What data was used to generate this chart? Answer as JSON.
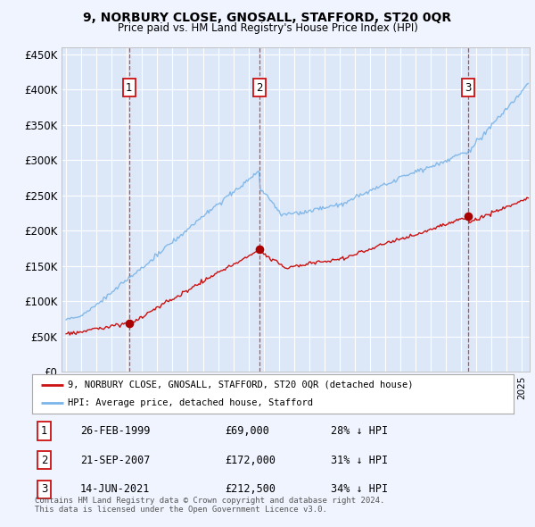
{
  "title": "9, NORBURY CLOSE, GNOSALL, STAFFORD, ST20 0QR",
  "subtitle": "Price paid vs. HM Land Registry's House Price Index (HPI)",
  "background_color": "#f0f4ff",
  "plot_bg_color": "#dce8f8",
  "red_line_label": "9, NORBURY CLOSE, GNOSALL, STAFFORD, ST20 0QR (detached house)",
  "blue_line_label": "HPI: Average price, detached house, Stafford",
  "transactions": [
    {
      "num": 1,
      "date": "26-FEB-1999",
      "price": 69000,
      "hpi_pct": "28% ↓ HPI",
      "year": 1999.15
    },
    {
      "num": 2,
      "date": "21-SEP-2007",
      "price": 172000,
      "hpi_pct": "31% ↓ HPI",
      "year": 2007.72
    },
    {
      "num": 3,
      "date": "14-JUN-2021",
      "price": 212500,
      "hpi_pct": "34% ↓ HPI",
      "year": 2021.45
    }
  ],
  "footer": "Contains HM Land Registry data © Crown copyright and database right 2024.\nThis data is licensed under the Open Government Licence v3.0.",
  "ylim": [
    0,
    460000
  ],
  "xlim_start": 1994.7,
  "xlim_end": 2025.5,
  "yticks": [
    0,
    50000,
    100000,
    150000,
    200000,
    250000,
    300000,
    350000,
    400000,
    450000
  ],
  "ytick_labels": [
    "£0",
    "£50K",
    "£100K",
    "£150K",
    "£200K",
    "£250K",
    "£300K",
    "£350K",
    "£400K",
    "£450K"
  ]
}
